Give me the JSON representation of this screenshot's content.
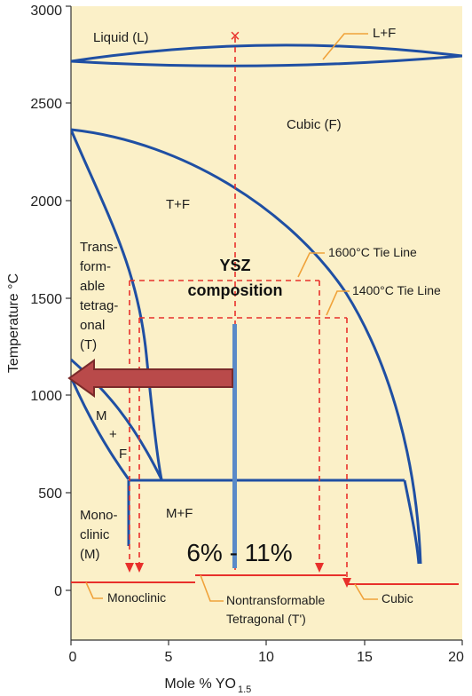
{
  "colors": {
    "background": "#fbf0c8",
    "phase_line": "#1f4fa3",
    "tie_line": "#e8302b",
    "callout": "#f0a23a",
    "arrow_fill": "#b94a4a",
    "arrow_edge": "#7a2a2a",
    "marker_bar": "#5a8ac8"
  },
  "axes": {
    "x_title": "Mole % YO",
    "x_title_sub": "1.5",
    "y_title": "Temperature °C",
    "x_ticks": [
      "0",
      "5",
      "10",
      "15",
      "20"
    ],
    "y_ticks": [
      "0",
      "500",
      "1000",
      "1500",
      "2000",
      "2500",
      "3000"
    ]
  },
  "regions": {
    "liquid": "Liquid (L)",
    "cubic": "Cubic (F)",
    "tf": "T+F",
    "transformable": [
      "Trans-",
      "form-",
      "able",
      "tetrag-",
      "onal",
      "(T)"
    ],
    "mf_left": [
      "M",
      "+",
      "F"
    ],
    "mf_right": "M+F",
    "monoclinic_region": [
      "Mono-",
      "clinic",
      "(M)"
    ]
  },
  "callouts": {
    "lf": "L+F",
    "tie1600": "1600°C Tie Line",
    "tie1400": "1400°C Tie Line",
    "monoclinic": "Monoclinic",
    "nontransformable": [
      "Nontransformable",
      "Tetragonal (T')"
    ],
    "cubic": "Cubic"
  },
  "annotations": {
    "ysz": [
      "YSZ",
      "composition"
    ],
    "range": "6% - 11%"
  },
  "markers": {
    "cross": "×"
  }
}
